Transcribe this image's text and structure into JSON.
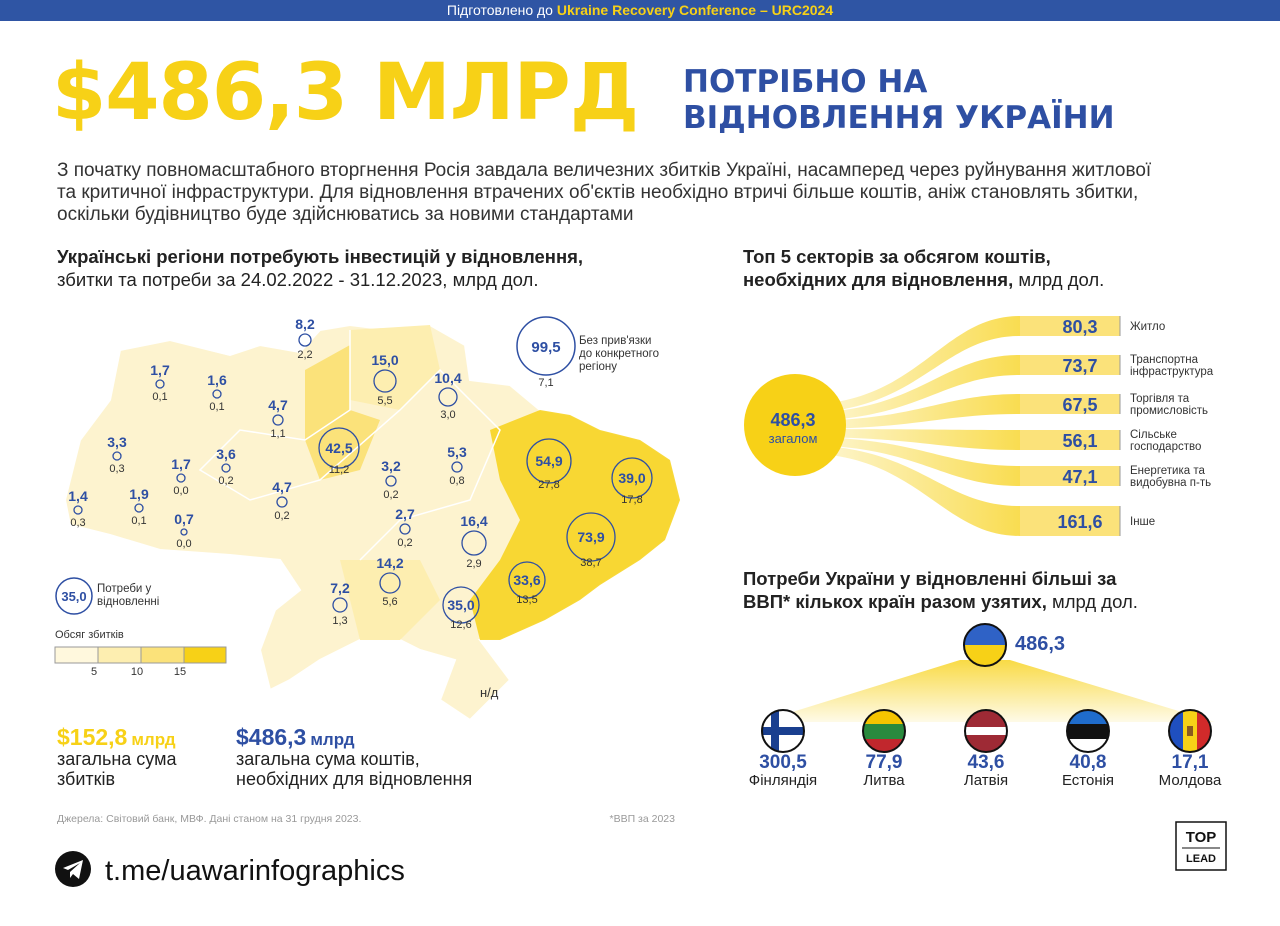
{
  "banner": {
    "prefix": "Підготовлено до",
    "highlight": "Ukraine Recovery Conference – URC2024"
  },
  "header": {
    "amount": "$486,3 МЛРД",
    "title": [
      "ПОТРІБНО НА",
      "ВІДНОВЛЕННЯ УКРАЇНИ"
    ]
  },
  "intro": "З початку повномасштабного вторгнення Росія завдала величезних збитків Україні, насамперед через руйнування житлової та критичної інфраструктури. Для відновлення втрачених об'єктів необхідно втричі більше коштів, аніж становлять збитки, оскільки будівництво буде здійснюватись за новими стандартами",
  "map": {
    "title_bold": "Українські регіони потребують інвестицій у відновлення,",
    "title_rest": "збитки та потреби за 24.02.2022 - 31.12.2023, млрд дол.",
    "regions": [
      {
        "need": "8,2",
        "damage": "2,2"
      },
      {
        "need": "1,7",
        "damage": "0,1"
      },
      {
        "need": "1,6",
        "damage": "0,1"
      },
      {
        "need": "4,7",
        "damage": "1,1"
      },
      {
        "need": "15,0",
        "damage": "5,5"
      },
      {
        "need": "10,4",
        "damage": "3,0"
      },
      {
        "need": "42,5",
        "damage": "11,2"
      },
      {
        "need": "3,3",
        "damage": "0,3"
      },
      {
        "need": "3,6",
        "damage": "0,2"
      },
      {
        "need": "1,7",
        "damage": "0,0"
      },
      {
        "need": "3,2",
        "damage": "0,2"
      },
      {
        "need": "5,3",
        "damage": "0,8"
      },
      {
        "need": "54,9",
        "damage": "27,8"
      },
      {
        "need": "39,0",
        "damage": "17,8"
      },
      {
        "need": "1,4",
        "damage": "0,3"
      },
      {
        "need": "1,9",
        "damage": "0,1"
      },
      {
        "need": "4,7",
        "damage": "0,2"
      },
      {
        "need": "0,7",
        "damage": "0,0"
      },
      {
        "need": "2,7",
        "damage": "0,2"
      },
      {
        "need": "16,4",
        "damage": "2,9"
      },
      {
        "need": "73,9",
        "damage": "38,7"
      },
      {
        "need": "14,2",
        "damage": "5,6"
      },
      {
        "need": "7,2",
        "damage": "1,3"
      },
      {
        "need": "33,6",
        "damage": "13,5"
      },
      {
        "need": "35,0",
        "damage": "12,6"
      }
    ],
    "unassigned": {
      "need": "99,5",
      "damage": "7,1",
      "label": [
        "Без прив'язки",
        "до конкретного",
        "регіону"
      ]
    },
    "legend": {
      "need": "35,0",
      "label": [
        "Потреби у",
        "відновленні"
      ]
    },
    "scale": {
      "label": "Обсяг збитків",
      "ticks": [
        5,
        10,
        15
      ]
    },
    "na": "н/д"
  },
  "totals": [
    {
      "amount": "$152,8",
      "unit": "млрд",
      "label": [
        "загальна сума",
        "збитків"
      ]
    },
    {
      "amount": "$486,3",
      "unit": "млрд",
      "label": [
        "загальна сума коштів,",
        "необхідних для відновлення"
      ]
    }
  ],
  "sources": "Джерела: Світовий банк, МВФ. Дані станом на 31 грудня 2023.",
  "footnote": "*ВВП за 2023",
  "sectors": {
    "title_bold": [
      "Топ 5 секторів за обсягом коштів,",
      "необхідних для відновлення,"
    ],
    "title_rest": "млрд дол.",
    "total": {
      "value": "486,3",
      "label": "загалом"
    },
    "items": [
      {
        "value": "80,3",
        "label": [
          "Житло"
        ]
      },
      {
        "value": "73,7",
        "label": [
          "Транспортна",
          "інфраструктура"
        ]
      },
      {
        "value": "67,5",
        "label": [
          "Торгівля та",
          "промисловість"
        ]
      },
      {
        "value": "56,1",
        "label": [
          "Сільське",
          "господарство"
        ]
      },
      {
        "value": "47,1",
        "label": [
          "Енергетика та",
          "видобувна п-ть"
        ]
      },
      {
        "value": "161,6",
        "label": [
          "Інше"
        ]
      }
    ]
  },
  "gdp": {
    "title_bold": [
      "Потреби України у відновленні більші за",
      "ВВП* кількох країн разом узятих,"
    ],
    "title_rest": "млрд дол.",
    "ukraine": "486,3",
    "countries": [
      {
        "value": "300,5",
        "name": "Фінляндія"
      },
      {
        "value": "77,9",
        "name": "Литва"
      },
      {
        "value": "43,6",
        "name": "Латвія"
      },
      {
        "value": "40,8",
        "name": "Естонія"
      },
      {
        "value": "17,1",
        "name": "Молдова"
      }
    ]
  },
  "telegram": "t.me/uawarinfographics",
  "logo": [
    "TOP",
    "LEAD"
  ]
}
